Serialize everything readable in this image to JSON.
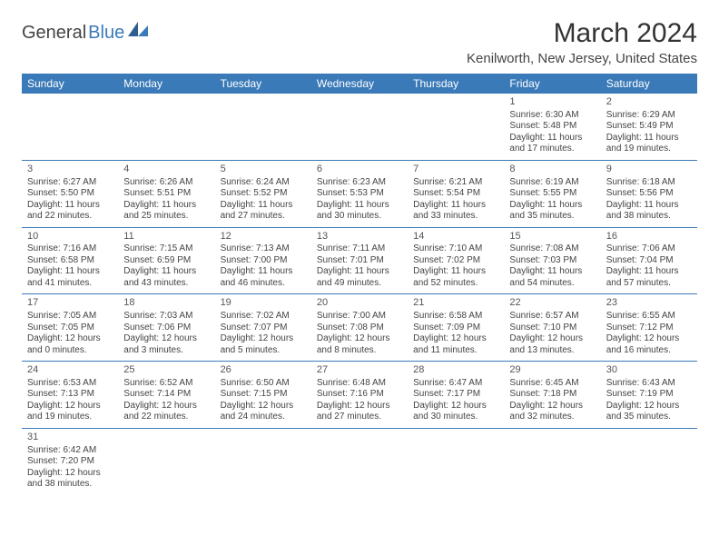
{
  "logo": {
    "textA": "General",
    "textB": "Blue"
  },
  "title": "March 2024",
  "location": "Kenilworth, New Jersey, United States",
  "colors": {
    "header_bg": "#3a7ab8",
    "header_text": "#ffffff",
    "row_border": "#3a7ab8",
    "body_text": "#444444"
  },
  "daysOfWeek": [
    "Sunday",
    "Monday",
    "Tuesday",
    "Wednesday",
    "Thursday",
    "Friday",
    "Saturday"
  ],
  "weeks": [
    [
      null,
      null,
      null,
      null,
      null,
      {
        "n": "1",
        "sr": "Sunrise: 6:30 AM",
        "ss": "Sunset: 5:48 PM",
        "d1": "Daylight: 11 hours",
        "d2": "and 17 minutes."
      },
      {
        "n": "2",
        "sr": "Sunrise: 6:29 AM",
        "ss": "Sunset: 5:49 PM",
        "d1": "Daylight: 11 hours",
        "d2": "and 19 minutes."
      }
    ],
    [
      {
        "n": "3",
        "sr": "Sunrise: 6:27 AM",
        "ss": "Sunset: 5:50 PM",
        "d1": "Daylight: 11 hours",
        "d2": "and 22 minutes."
      },
      {
        "n": "4",
        "sr": "Sunrise: 6:26 AM",
        "ss": "Sunset: 5:51 PM",
        "d1": "Daylight: 11 hours",
        "d2": "and 25 minutes."
      },
      {
        "n": "5",
        "sr": "Sunrise: 6:24 AM",
        "ss": "Sunset: 5:52 PM",
        "d1": "Daylight: 11 hours",
        "d2": "and 27 minutes."
      },
      {
        "n": "6",
        "sr": "Sunrise: 6:23 AM",
        "ss": "Sunset: 5:53 PM",
        "d1": "Daylight: 11 hours",
        "d2": "and 30 minutes."
      },
      {
        "n": "7",
        "sr": "Sunrise: 6:21 AM",
        "ss": "Sunset: 5:54 PM",
        "d1": "Daylight: 11 hours",
        "d2": "and 33 minutes."
      },
      {
        "n": "8",
        "sr": "Sunrise: 6:19 AM",
        "ss": "Sunset: 5:55 PM",
        "d1": "Daylight: 11 hours",
        "d2": "and 35 minutes."
      },
      {
        "n": "9",
        "sr": "Sunrise: 6:18 AM",
        "ss": "Sunset: 5:56 PM",
        "d1": "Daylight: 11 hours",
        "d2": "and 38 minutes."
      }
    ],
    [
      {
        "n": "10",
        "sr": "Sunrise: 7:16 AM",
        "ss": "Sunset: 6:58 PM",
        "d1": "Daylight: 11 hours",
        "d2": "and 41 minutes."
      },
      {
        "n": "11",
        "sr": "Sunrise: 7:15 AM",
        "ss": "Sunset: 6:59 PM",
        "d1": "Daylight: 11 hours",
        "d2": "and 43 minutes."
      },
      {
        "n": "12",
        "sr": "Sunrise: 7:13 AM",
        "ss": "Sunset: 7:00 PM",
        "d1": "Daylight: 11 hours",
        "d2": "and 46 minutes."
      },
      {
        "n": "13",
        "sr": "Sunrise: 7:11 AM",
        "ss": "Sunset: 7:01 PM",
        "d1": "Daylight: 11 hours",
        "d2": "and 49 minutes."
      },
      {
        "n": "14",
        "sr": "Sunrise: 7:10 AM",
        "ss": "Sunset: 7:02 PM",
        "d1": "Daylight: 11 hours",
        "d2": "and 52 minutes."
      },
      {
        "n": "15",
        "sr": "Sunrise: 7:08 AM",
        "ss": "Sunset: 7:03 PM",
        "d1": "Daylight: 11 hours",
        "d2": "and 54 minutes."
      },
      {
        "n": "16",
        "sr": "Sunrise: 7:06 AM",
        "ss": "Sunset: 7:04 PM",
        "d1": "Daylight: 11 hours",
        "d2": "and 57 minutes."
      }
    ],
    [
      {
        "n": "17",
        "sr": "Sunrise: 7:05 AM",
        "ss": "Sunset: 7:05 PM",
        "d1": "Daylight: 12 hours",
        "d2": "and 0 minutes."
      },
      {
        "n": "18",
        "sr": "Sunrise: 7:03 AM",
        "ss": "Sunset: 7:06 PM",
        "d1": "Daylight: 12 hours",
        "d2": "and 3 minutes."
      },
      {
        "n": "19",
        "sr": "Sunrise: 7:02 AM",
        "ss": "Sunset: 7:07 PM",
        "d1": "Daylight: 12 hours",
        "d2": "and 5 minutes."
      },
      {
        "n": "20",
        "sr": "Sunrise: 7:00 AM",
        "ss": "Sunset: 7:08 PM",
        "d1": "Daylight: 12 hours",
        "d2": "and 8 minutes."
      },
      {
        "n": "21",
        "sr": "Sunrise: 6:58 AM",
        "ss": "Sunset: 7:09 PM",
        "d1": "Daylight: 12 hours",
        "d2": "and 11 minutes."
      },
      {
        "n": "22",
        "sr": "Sunrise: 6:57 AM",
        "ss": "Sunset: 7:10 PM",
        "d1": "Daylight: 12 hours",
        "d2": "and 13 minutes."
      },
      {
        "n": "23",
        "sr": "Sunrise: 6:55 AM",
        "ss": "Sunset: 7:12 PM",
        "d1": "Daylight: 12 hours",
        "d2": "and 16 minutes."
      }
    ],
    [
      {
        "n": "24",
        "sr": "Sunrise: 6:53 AM",
        "ss": "Sunset: 7:13 PM",
        "d1": "Daylight: 12 hours",
        "d2": "and 19 minutes."
      },
      {
        "n": "25",
        "sr": "Sunrise: 6:52 AM",
        "ss": "Sunset: 7:14 PM",
        "d1": "Daylight: 12 hours",
        "d2": "and 22 minutes."
      },
      {
        "n": "26",
        "sr": "Sunrise: 6:50 AM",
        "ss": "Sunset: 7:15 PM",
        "d1": "Daylight: 12 hours",
        "d2": "and 24 minutes."
      },
      {
        "n": "27",
        "sr": "Sunrise: 6:48 AM",
        "ss": "Sunset: 7:16 PM",
        "d1": "Daylight: 12 hours",
        "d2": "and 27 minutes."
      },
      {
        "n": "28",
        "sr": "Sunrise: 6:47 AM",
        "ss": "Sunset: 7:17 PM",
        "d1": "Daylight: 12 hours",
        "d2": "and 30 minutes."
      },
      {
        "n": "29",
        "sr": "Sunrise: 6:45 AM",
        "ss": "Sunset: 7:18 PM",
        "d1": "Daylight: 12 hours",
        "d2": "and 32 minutes."
      },
      {
        "n": "30",
        "sr": "Sunrise: 6:43 AM",
        "ss": "Sunset: 7:19 PM",
        "d1": "Daylight: 12 hours",
        "d2": "and 35 minutes."
      }
    ],
    [
      {
        "n": "31",
        "sr": "Sunrise: 6:42 AM",
        "ss": "Sunset: 7:20 PM",
        "d1": "Daylight: 12 hours",
        "d2": "and 38 minutes."
      },
      null,
      null,
      null,
      null,
      null,
      null
    ]
  ]
}
